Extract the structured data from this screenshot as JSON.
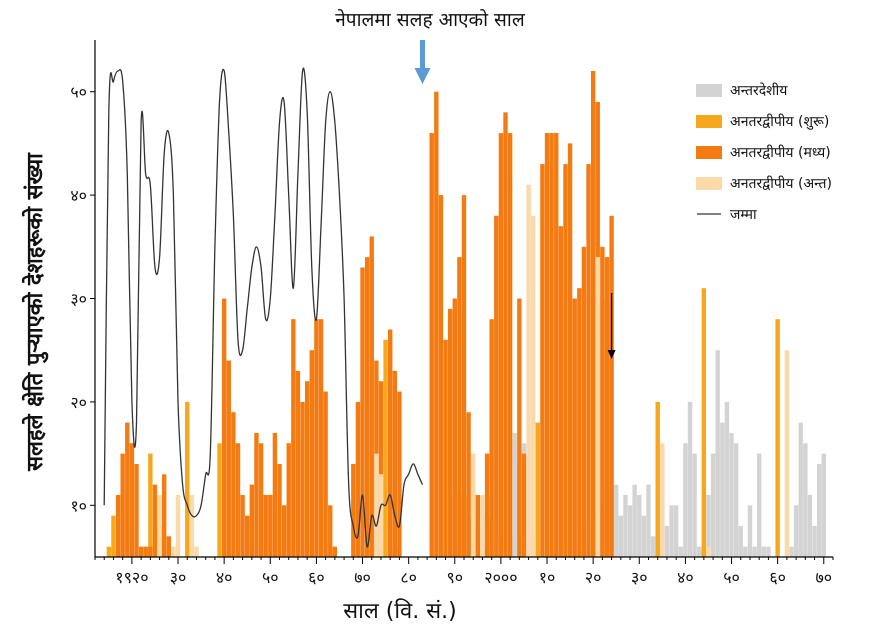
{
  "chart_data": {
    "type": "bar",
    "title": "",
    "xlabel": "साल (वि. सं.)",
    "ylabel": "सलहले क्षेति पुऱ्याएको देशहरूको संख्या",
    "annotation": "नेपालमा सलह आएको साल",
    "annotation_x": 1983,
    "second_marker_x": 2024,
    "xlim": [
      1912,
      2072
    ],
    "ylim": [
      5,
      55
    ],
    "x_ticks": [
      1920,
      1930,
      1940,
      1950,
      1960,
      1970,
      1980,
      1990,
      2000,
      2010,
      2020,
      2030,
      2040,
      2050,
      2060,
      2070
    ],
    "x_tick_labels": [
      "१९२०",
      "३०",
      "४०",
      "५०",
      "६०",
      "७०",
      "८०",
      "९०",
      "२०००",
      "१०",
      "२०",
      "३०",
      "४०",
      "५०",
      "६०",
      "७०"
    ],
    "y_ticks": [
      10,
      20,
      30,
      40,
      50
    ],
    "y_tick_labels": [
      "१०",
      "२०",
      "३०",
      "४०",
      "५०"
    ],
    "legend_position": "top-right",
    "colors": {
      "inter": "#d3d3d3",
      "upStart": "#f7a71b",
      "upMid": "#f47a12",
      "upEnd": "#fbd9a8",
      "total": "#333333",
      "arrow_blue": "#5b9bd5",
      "arrow_black": "#000000"
    },
    "series": [
      {
        "name": "अन्तरदेशीय",
        "key": "inter",
        "points": [
          [
            1975,
            6
          ],
          [
            1976,
            6
          ],
          [
            1977,
            6
          ],
          [
            1978,
            6
          ],
          [
            1990,
            11
          ],
          [
            1991,
            11
          ],
          [
            1992,
            11
          ],
          [
            1993,
            9
          ],
          [
            1994,
            9
          ],
          [
            1995,
            8
          ],
          [
            2000,
            7
          ],
          [
            2002,
            7
          ],
          [
            2003,
            17
          ],
          [
            2004,
            14
          ],
          [
            2005,
            16
          ],
          [
            2006,
            7
          ],
          [
            2018,
            6
          ],
          [
            2019,
            8
          ],
          [
            2020,
            9
          ],
          [
            2021,
            12
          ],
          [
            2022,
            10
          ],
          [
            2023,
            12
          ],
          [
            2024,
            12
          ],
          [
            2025,
            12
          ],
          [
            2026,
            9
          ],
          [
            2027,
            11
          ],
          [
            2028,
            10
          ],
          [
            2029,
            12
          ],
          [
            2030,
            11
          ],
          [
            2031,
            9
          ],
          [
            2032,
            12
          ],
          [
            2033,
            7
          ],
          [
            2034,
            7
          ],
          [
            2035,
            11
          ],
          [
            2036,
            8
          ],
          [
            2037,
            10
          ],
          [
            2038,
            10
          ],
          [
            2039,
            6
          ],
          [
            2040,
            16
          ],
          [
            2041,
            20
          ],
          [
            2042,
            15
          ],
          [
            2043,
            6
          ],
          [
            2044,
            11
          ],
          [
            2045,
            11
          ],
          [
            2046,
            15
          ],
          [
            2047,
            25
          ],
          [
            2048,
            18
          ],
          [
            2049,
            20
          ],
          [
            2050,
            17
          ],
          [
            2051,
            16
          ],
          [
            2052,
            8
          ],
          [
            2053,
            6
          ],
          [
            2054,
            10
          ],
          [
            2055,
            6
          ],
          [
            2056,
            15
          ],
          [
            2057,
            6
          ],
          [
            2058,
            6
          ],
          [
            2063,
            6
          ],
          [
            2064,
            10
          ],
          [
            2065,
            18
          ],
          [
            2066,
            16
          ],
          [
            2067,
            11
          ],
          [
            2068,
            8
          ],
          [
            2069,
            14
          ],
          [
            2070,
            15
          ]
        ]
      },
      {
        "name": "अनतरद्वीपीय (शुरू)",
        "key": "upStart",
        "points": [
          [
            1915,
            6
          ],
          [
            1916,
            9
          ],
          [
            1924,
            15
          ],
          [
            1932,
            20
          ],
          [
            1939,
            16
          ],
          [
            1975,
            26
          ],
          [
            1992,
            11
          ],
          [
            1996,
            6
          ],
          [
            1997,
            9
          ],
          [
            2008,
            18
          ],
          [
            2023,
            30
          ],
          [
            2034,
            20
          ],
          [
            2044,
            31
          ],
          [
            2060,
            28
          ]
        ]
      },
      {
        "name": "अनतरद्वीपीय (मध्य)",
        "key": "upMid",
        "points": [
          [
            1917,
            11
          ],
          [
            1918,
            15
          ],
          [
            1919,
            18
          ],
          [
            1920,
            16
          ],
          [
            1921,
            14
          ],
          [
            1922,
            6
          ],
          [
            1923,
            6
          ],
          [
            1924,
            6
          ],
          [
            1925,
            12
          ],
          [
            1926,
            8
          ],
          [
            1927,
            13
          ],
          [
            1928,
            7
          ],
          [
            1940,
            30
          ],
          [
            1941,
            24
          ],
          [
            1942,
            19
          ],
          [
            1943,
            16
          ],
          [
            1944,
            11
          ],
          [
            1945,
            9
          ],
          [
            1946,
            12
          ],
          [
            1947,
            17
          ],
          [
            1948,
            16
          ],
          [
            1949,
            11
          ],
          [
            1950,
            11
          ],
          [
            1951,
            17
          ],
          [
            1952,
            14
          ],
          [
            1953,
            10
          ],
          [
            1954,
            16
          ],
          [
            1955,
            28
          ],
          [
            1956,
            23
          ],
          [
            1957,
            20
          ],
          [
            1958,
            22
          ],
          [
            1959,
            25
          ],
          [
            1960,
            28
          ],
          [
            1961,
            28
          ],
          [
            1962,
            21
          ],
          [
            1963,
            10
          ],
          [
            1964,
            6
          ],
          [
            1968,
            14
          ],
          [
            1969,
            20
          ],
          [
            1970,
            33
          ],
          [
            1971,
            34
          ],
          [
            1972,
            36
          ],
          [
            1973,
            24
          ],
          [
            1974,
            22
          ],
          [
            1976,
            27
          ],
          [
            1977,
            23
          ],
          [
            1978,
            21
          ],
          [
            1985,
            46
          ],
          [
            1986,
            50
          ],
          [
            1987,
            40
          ],
          [
            1988,
            26
          ],
          [
            1989,
            29
          ],
          [
            1990,
            30
          ],
          [
            1991,
            34
          ],
          [
            1992,
            40
          ],
          [
            1993,
            19
          ],
          [
            1995,
            11
          ],
          [
            1997,
            15
          ],
          [
            1998,
            28
          ],
          [
            1999,
            38
          ],
          [
            2000,
            46
          ],
          [
            2001,
            48
          ],
          [
            2002,
            46
          ],
          [
            2004,
            30
          ],
          [
            2005,
            15
          ],
          [
            2009,
            43
          ],
          [
            2010,
            46
          ],
          [
            2011,
            46
          ],
          [
            2012,
            46
          ],
          [
            2013,
            37
          ],
          [
            2014,
            43
          ],
          [
            2015,
            45
          ],
          [
            2016,
            30
          ],
          [
            2017,
            31
          ],
          [
            2018,
            35
          ],
          [
            2019,
            43
          ],
          [
            2020,
            52
          ],
          [
            2021,
            49
          ],
          [
            2022,
            35
          ],
          [
            2023,
            34
          ],
          [
            2024,
            38
          ]
        ]
      },
      {
        "name": "अनतरद्वीपीय (अन्त)",
        "key": "upEnd",
        "points": [
          [
            1926,
            11
          ],
          [
            1929,
            6
          ],
          [
            1930,
            11
          ],
          [
            1933,
            11
          ],
          [
            1934,
            6
          ],
          [
            1973,
            15
          ],
          [
            1974,
            13
          ],
          [
            1994,
            15
          ],
          [
            1996,
            11
          ],
          [
            2006,
            41
          ],
          [
            2007,
            38
          ],
          [
            2021,
            34
          ],
          [
            2035,
            16
          ],
          [
            2045,
            6
          ],
          [
            2062,
            25
          ]
        ]
      }
    ],
    "total": {
      "name": "जम्मा",
      "x": [
        1914,
        1915,
        1916,
        1917,
        1918,
        1919,
        1920,
        1921,
        1922,
        1923,
        1924,
        1925,
        1926,
        1927,
        1928,
        1929,
        1930,
        1931,
        1932,
        1933,
        1934,
        1935,
        1936,
        1937,
        1938,
        1939,
        1940,
        1941,
        1942,
        1943,
        1944,
        1945,
        1946,
        1947,
        1948,
        1949,
        1950,
        1951,
        1952,
        1953,
        1954,
        1955,
        1956,
        1957,
        1958,
        1959,
        1960,
        1961,
        1962,
        1963,
        1964,
        1965,
        1966,
        1967,
        1968,
        1969,
        1970,
        1971,
        1972,
        1973,
        1974,
        1975,
        1976,
        1977,
        1978,
        1979,
        1980,
        1981,
        1982,
        1983
      ],
      "y": [
        10,
        48,
        51,
        52,
        51,
        42,
        20,
        18,
        47,
        42,
        41,
        33,
        34,
        44,
        46,
        40,
        20,
        12,
        10,
        9,
        9,
        10,
        13,
        15,
        35,
        49,
        52,
        46,
        38,
        26,
        25,
        29,
        33,
        35,
        33,
        28,
        30,
        38,
        47,
        49,
        40,
        31,
        42,
        52,
        48,
        33,
        28,
        37,
        47,
        50,
        47,
        40,
        30,
        12,
        8,
        7,
        11,
        6,
        9,
        8,
        10,
        10,
        11,
        9,
        8,
        12,
        13,
        14,
        13,
        12
      ]
    }
  }
}
